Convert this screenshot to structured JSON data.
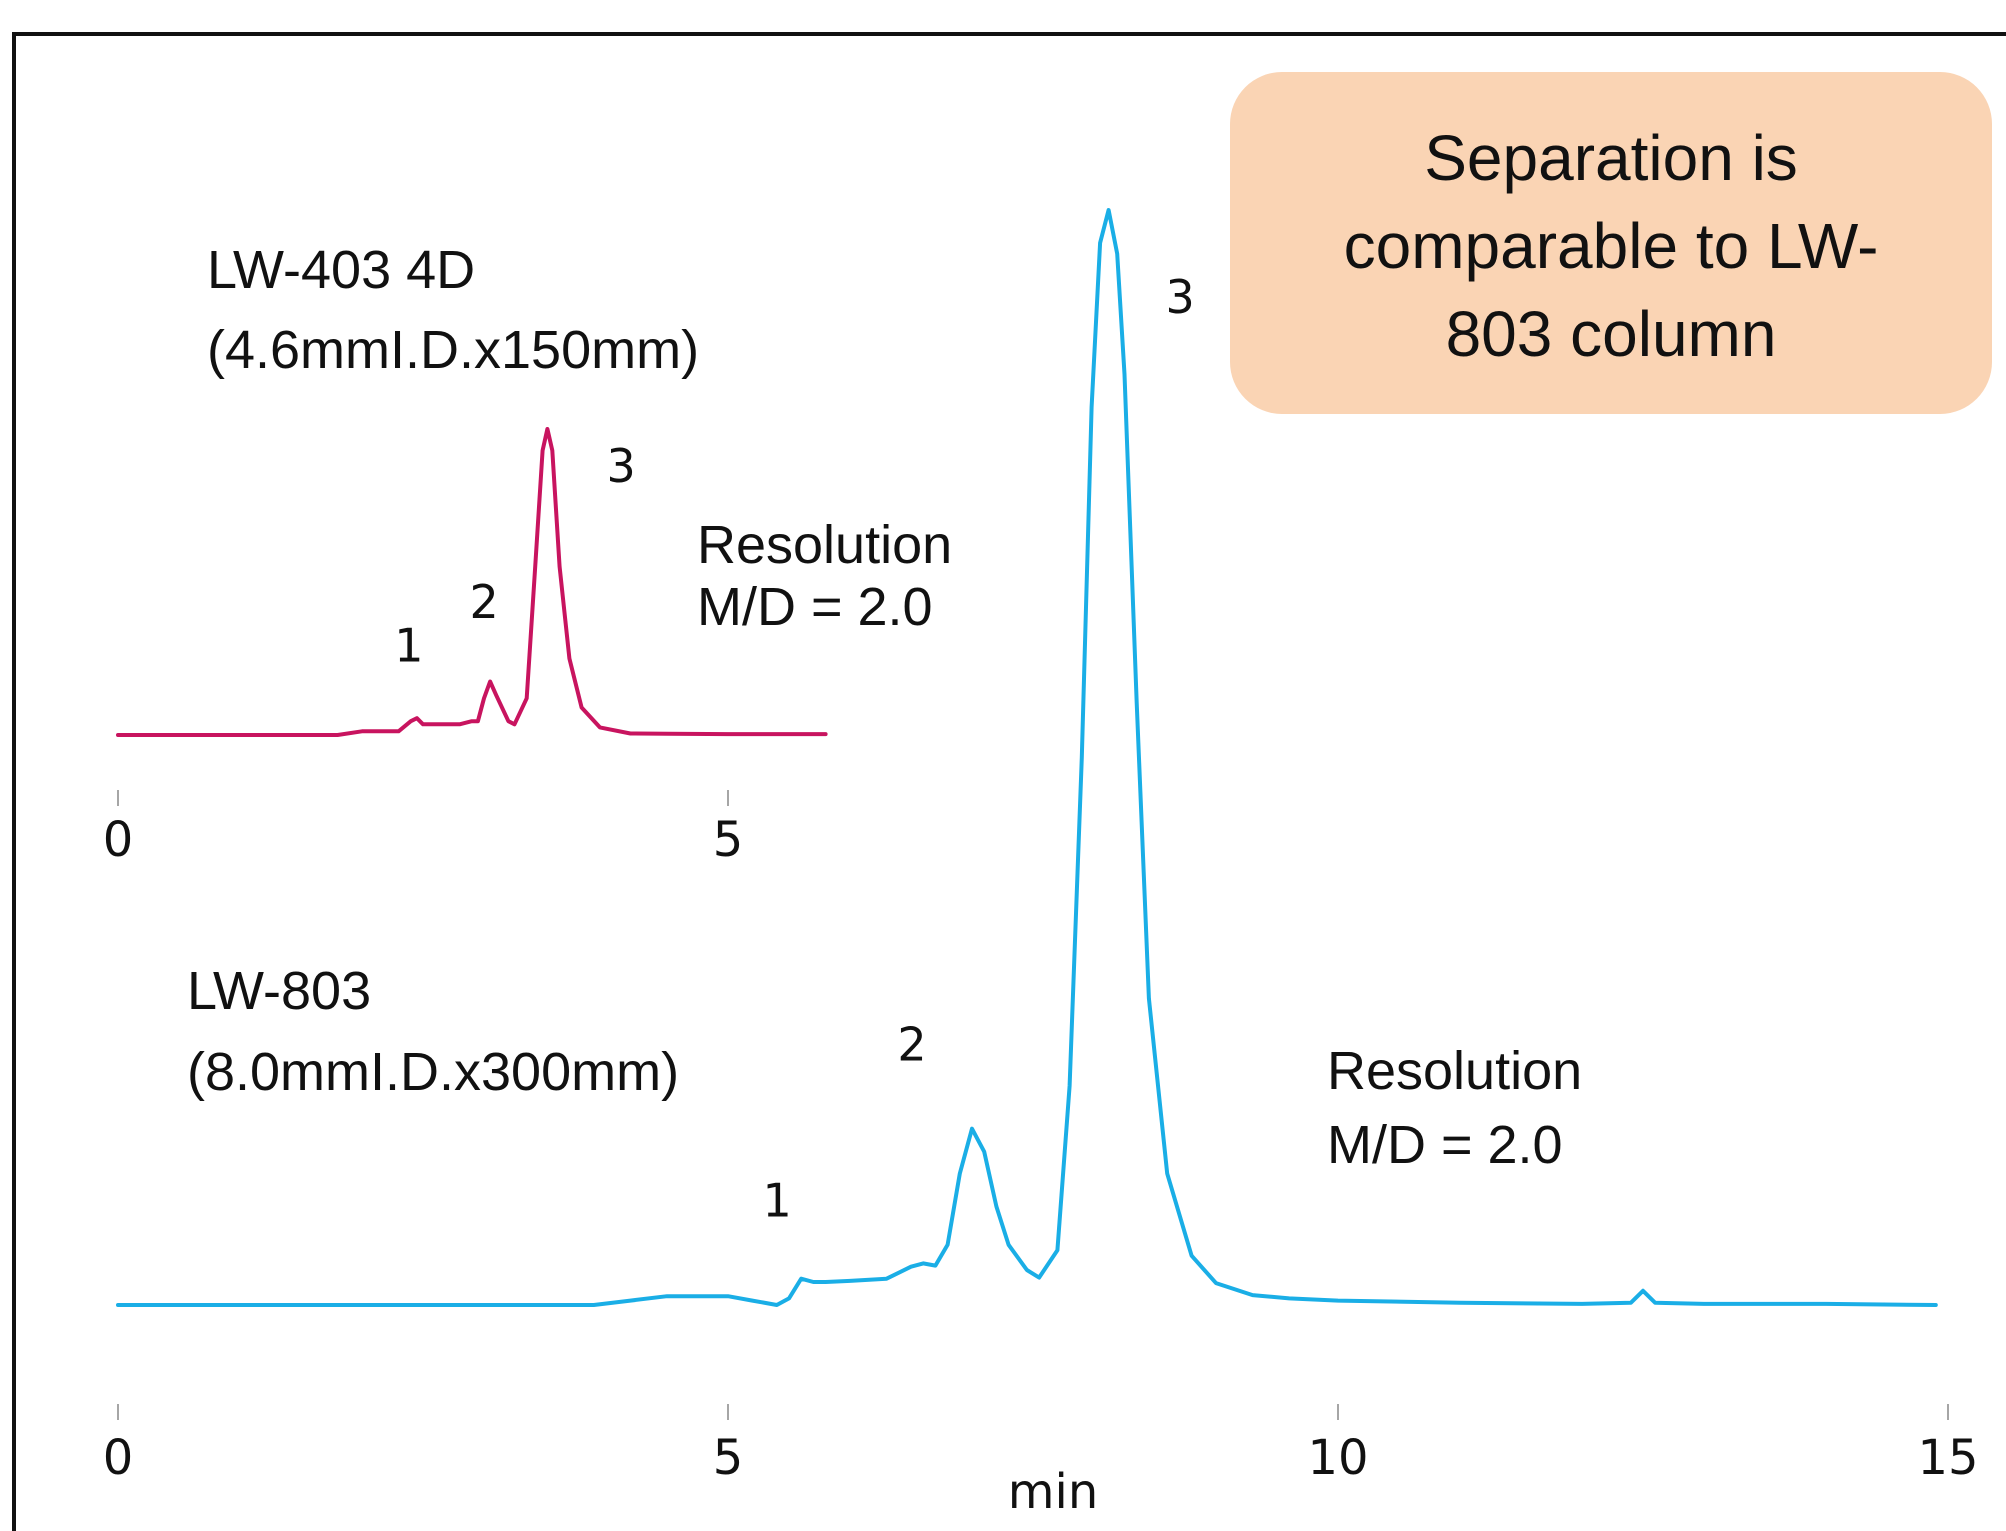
{
  "callout": {
    "line1": "Separation is",
    "line2": "comparable to LW-",
    "line3": "803 column",
    "fill": "#fad4b4"
  },
  "colors": {
    "lw403": "#c8145f",
    "lw803": "#1aaee6",
    "frame": "#111111"
  },
  "chart_data": [
    {
      "type": "line",
      "name_line1": "LW-403 4D",
      "name_line2": "(4.6mmI.D.x150mm)",
      "resolution_line1": "Resolution",
      "resolution_line2": "M/D = 2.0",
      "color": "#c8145f",
      "xlim": [
        0,
        6
      ],
      "xticks": [
        "0",
        "5"
      ],
      "xtick_values": [
        0,
        5
      ],
      "peak_labels": [
        {
          "label": "1",
          "x": 2.45,
          "y": 0.06
        },
        {
          "label": "2",
          "x": 3.05,
          "y": 0.17
        },
        {
          "label": "3",
          "x": 3.55,
          "y": 1.0
        }
      ],
      "points": [
        [
          0,
          0
        ],
        [
          1.0,
          0
        ],
        [
          1.8,
          0
        ],
        [
          2.0,
          0.012
        ],
        [
          2.3,
          0.012
        ],
        [
          2.4,
          0.045
        ],
        [
          2.45,
          0.055
        ],
        [
          2.5,
          0.035
        ],
        [
          2.6,
          0.035
        ],
        [
          2.8,
          0.035
        ],
        [
          2.9,
          0.045
        ],
        [
          2.95,
          0.045
        ],
        [
          3.0,
          0.12
        ],
        [
          3.05,
          0.175
        ],
        [
          3.1,
          0.13
        ],
        [
          3.2,
          0.045
        ],
        [
          3.25,
          0.035
        ],
        [
          3.35,
          0.12
        ],
        [
          3.42,
          0.55
        ],
        [
          3.48,
          0.93
        ],
        [
          3.52,
          1.0
        ],
        [
          3.56,
          0.93
        ],
        [
          3.62,
          0.55
        ],
        [
          3.7,
          0.25
        ],
        [
          3.8,
          0.09
        ],
        [
          3.95,
          0.025
        ],
        [
          4.2,
          0.005
        ],
        [
          4.5,
          0.004
        ],
        [
          5.0,
          0.003
        ],
        [
          5.8,
          0.003
        ]
      ]
    },
    {
      "type": "line",
      "name_line1": "LW-803",
      "name_line2": "(8.0mmI.D.x300mm)",
      "resolution_line1": "Resolution",
      "resolution_line2": "M/D = 2.0",
      "color": "#1aaee6",
      "xlabel": "min",
      "xlim": [
        0,
        15
      ],
      "xticks": [
        "0",
        "5",
        "10",
        "15"
      ],
      "xtick_values": [
        0,
        5,
        10,
        15
      ],
      "peak_labels": [
        {
          "label": "1",
          "x": 5.6,
          "y": 0.024
        },
        {
          "label": "2",
          "x": 7.0,
          "y": 0.161
        },
        {
          "label": "3",
          "x": 8.1,
          "y": 1.0
        }
      ],
      "points": [
        [
          0,
          0
        ],
        [
          2.0,
          0
        ],
        [
          3.9,
          0
        ],
        [
          4.2,
          0.004
        ],
        [
          4.5,
          0.008
        ],
        [
          4.8,
          0.008
        ],
        [
          5.0,
          0.008
        ],
        [
          5.2,
          0.004
        ],
        [
          5.4,
          0.0
        ],
        [
          5.5,
          0.006
        ],
        [
          5.6,
          0.024
        ],
        [
          5.7,
          0.021
        ],
        [
          5.8,
          0.021
        ],
        [
          6.0,
          0.022
        ],
        [
          6.3,
          0.024
        ],
        [
          6.5,
          0.035
        ],
        [
          6.6,
          0.038
        ],
        [
          6.7,
          0.036
        ],
        [
          6.8,
          0.055
        ],
        [
          6.9,
          0.12
        ],
        [
          7.0,
          0.161
        ],
        [
          7.1,
          0.14
        ],
        [
          7.2,
          0.09
        ],
        [
          7.3,
          0.055
        ],
        [
          7.45,
          0.032
        ],
        [
          7.55,
          0.025
        ],
        [
          7.7,
          0.05
        ],
        [
          7.8,
          0.2
        ],
        [
          7.9,
          0.5
        ],
        [
          7.98,
          0.82
        ],
        [
          8.05,
          0.97
        ],
        [
          8.12,
          1.0
        ],
        [
          8.19,
          0.96
        ],
        [
          8.25,
          0.85
        ],
        [
          8.35,
          0.55
        ],
        [
          8.45,
          0.28
        ],
        [
          8.6,
          0.12
        ],
        [
          8.8,
          0.045
        ],
        [
          9.0,
          0.02
        ],
        [
          9.3,
          0.009
        ],
        [
          9.6,
          0.006
        ],
        [
          10.0,
          0.004
        ],
        [
          11.0,
          0.002
        ],
        [
          12.0,
          0.001
        ],
        [
          12.4,
          0.002
        ],
        [
          12.5,
          0.013
        ],
        [
          12.6,
          0.002
        ],
        [
          13.0,
          0.001
        ],
        [
          14.0,
          0.001
        ],
        [
          14.9,
          0.0
        ]
      ]
    }
  ]
}
